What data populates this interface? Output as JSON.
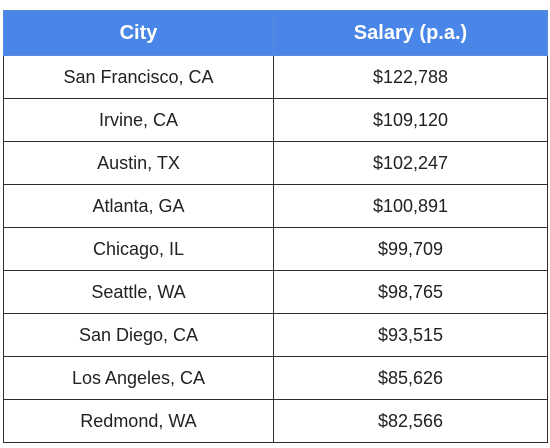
{
  "table": {
    "header_color": "#4a86e8",
    "columns": [
      "City",
      "Salary (p.a.)"
    ],
    "rows": [
      {
        "city": "San Francisco, CA",
        "salary": "$122,788"
      },
      {
        "city": "Irvine, CA",
        "salary": "$109,120"
      },
      {
        "city": "Austin, TX",
        "salary": "$102,247"
      },
      {
        "city": "Atlanta, GA",
        "salary": "$100,891"
      },
      {
        "city": "Chicago, IL",
        "salary": "$99,709"
      },
      {
        "city": "Seattle, WA",
        "salary": "$98,765"
      },
      {
        "city": "San Diego, CA",
        "salary": "$93,515"
      },
      {
        "city": "Los Angeles, CA",
        "salary": "$85,626"
      },
      {
        "city": "Redmond, WA",
        "salary": "$82,566"
      }
    ]
  }
}
